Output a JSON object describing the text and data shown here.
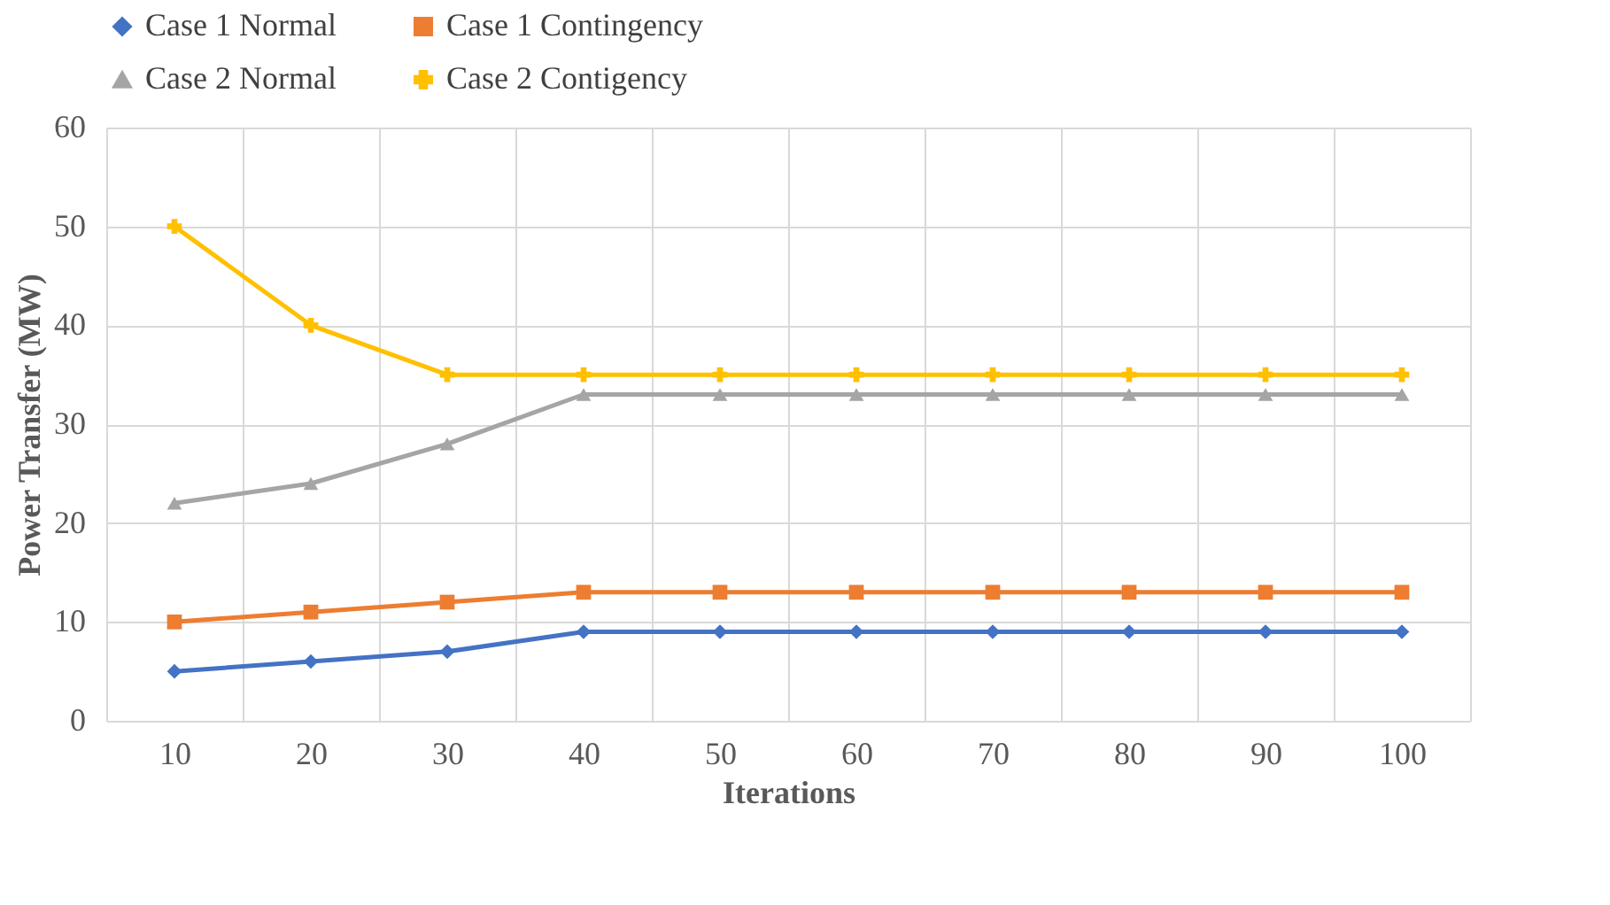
{
  "chart_data": {
    "type": "line",
    "xlabel": "Iterations",
    "ylabel": "Power Transfer (MW)",
    "categories": [
      "10",
      "20",
      "30",
      "40",
      "50",
      "60",
      "70",
      "80",
      "90",
      "100"
    ],
    "ylim": [
      0,
      60
    ],
    "yticks": [
      0,
      10,
      20,
      30,
      40,
      50,
      60
    ],
    "grid": true,
    "legend": "top",
    "series": [
      {
        "name": "Case 1 Normal",
        "color": "#4472c4",
        "marker": "diamond",
        "values": [
          5,
          6,
          7,
          9,
          9,
          9,
          9,
          9,
          9,
          9
        ]
      },
      {
        "name": "Case 1 Contingency",
        "color": "#ed7d31",
        "marker": "square",
        "values": [
          10,
          11,
          12,
          13,
          13,
          13,
          13,
          13,
          13,
          13
        ]
      },
      {
        "name": "Case 2 Normal",
        "color": "#a5a5a5",
        "marker": "triangle",
        "values": [
          22,
          24,
          28,
          33,
          33,
          33,
          33,
          33,
          33,
          33
        ]
      },
      {
        "name": "Case 2 Contigency",
        "color": "#ffc000",
        "marker": "cross",
        "values": [
          50,
          40,
          35,
          35,
          35,
          35,
          35,
          35,
          35,
          35
        ]
      }
    ]
  }
}
